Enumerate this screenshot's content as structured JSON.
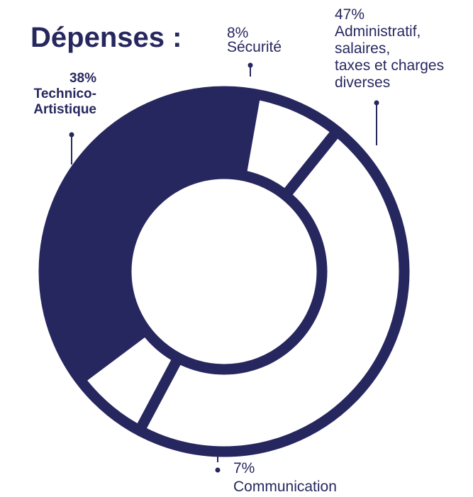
{
  "chart_data": {
    "type": "pie",
    "title": "Dépenses :",
    "style": "donut",
    "series": [
      {
        "slices": [
          {
            "label_lines": [
              "8%",
              "Sécurité"
            ],
            "value": 8,
            "filled": false
          },
          {
            "label_lines": [
              "47%",
              "Administratif,",
              "salaires,",
              "taxes et charges",
              "diverses"
            ],
            "value": 47,
            "filled": false
          },
          {
            "label_lines": [
              "7%",
              "Communication"
            ],
            "value": 7,
            "filled": false
          },
          {
            "label_lines": [
              "38%",
              "Technico-",
              "Artistique"
            ],
            "value": 38,
            "filled": true
          }
        ]
      }
    ],
    "colors": {
      "primary": "#27275f",
      "background": "#ffffff"
    }
  }
}
